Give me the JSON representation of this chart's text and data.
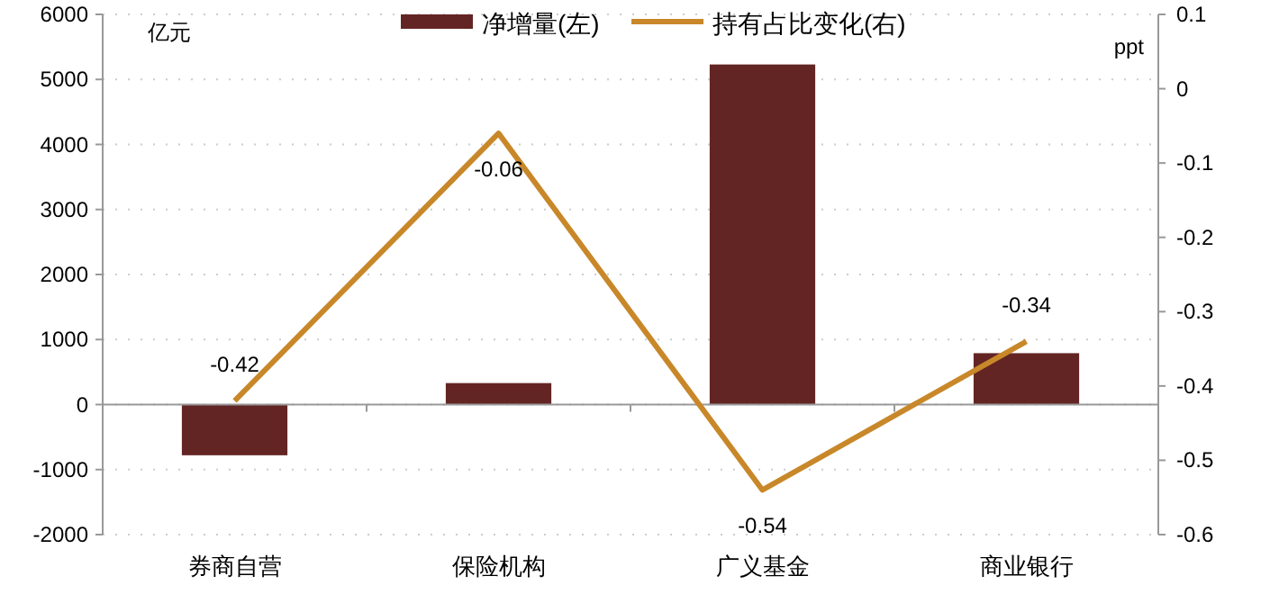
{
  "chart_data": {
    "type": "bar",
    "categories": [
      "券商自营",
      "保险机构",
      "广义基金",
      "商业银行"
    ],
    "ylabel": "亿元",
    "y2label": "ppt",
    "series": [
      {
        "name": "净增量(左)",
        "color": "#632523",
        "values": [
          -780,
          330,
          5230,
          790
        ]
      },
      {
        "name": "持有占比变化(右)",
        "type": "line",
        "axis": "y2",
        "color": "#c8882a",
        "values": [
          -0.42,
          -0.06,
          -0.54,
          -0.34
        ],
        "data_labels": true
      }
    ],
    "ylim": [
      -2000,
      6000
    ],
    "yticks": [
      -2000,
      -1000,
      0,
      1000,
      2000,
      3000,
      4000,
      5000,
      6000
    ],
    "y2lim": [
      -0.6,
      0.1
    ],
    "y2ticks": [
      -0.6,
      -0.5,
      -0.4,
      -0.3,
      -0.2,
      -0.1,
      0,
      0.1
    ],
    "legend": "top",
    "grid": "y"
  }
}
